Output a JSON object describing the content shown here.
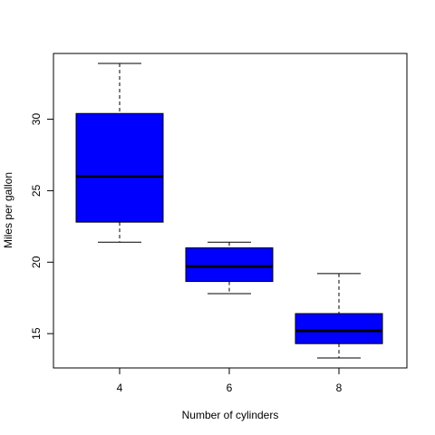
{
  "chart_data": {
    "type": "boxplot",
    "title": "",
    "xlabel": "Number of cylinders",
    "ylabel": "Miles per gallon",
    "categories": [
      "4",
      "6",
      "8"
    ],
    "ylim": [
      12.6,
      34.6
    ],
    "yticks": [
      15,
      20,
      25,
      30
    ],
    "box_color": "#0000FF",
    "median_color": "#000000",
    "grid": false,
    "boxes": [
      {
        "category": "4",
        "whisker_low": 21.4,
        "q1": 22.8,
        "median": 26.0,
        "q3": 30.4,
        "whisker_high": 33.9
      },
      {
        "category": "6",
        "whisker_low": 17.8,
        "q1": 18.65,
        "median": 19.7,
        "q3": 21.0,
        "whisker_high": 21.4
      },
      {
        "category": "8",
        "whisker_low": 13.3,
        "q1": 14.3,
        "median": 15.2,
        "q3": 16.4,
        "whisker_high": 19.2
      }
    ]
  }
}
